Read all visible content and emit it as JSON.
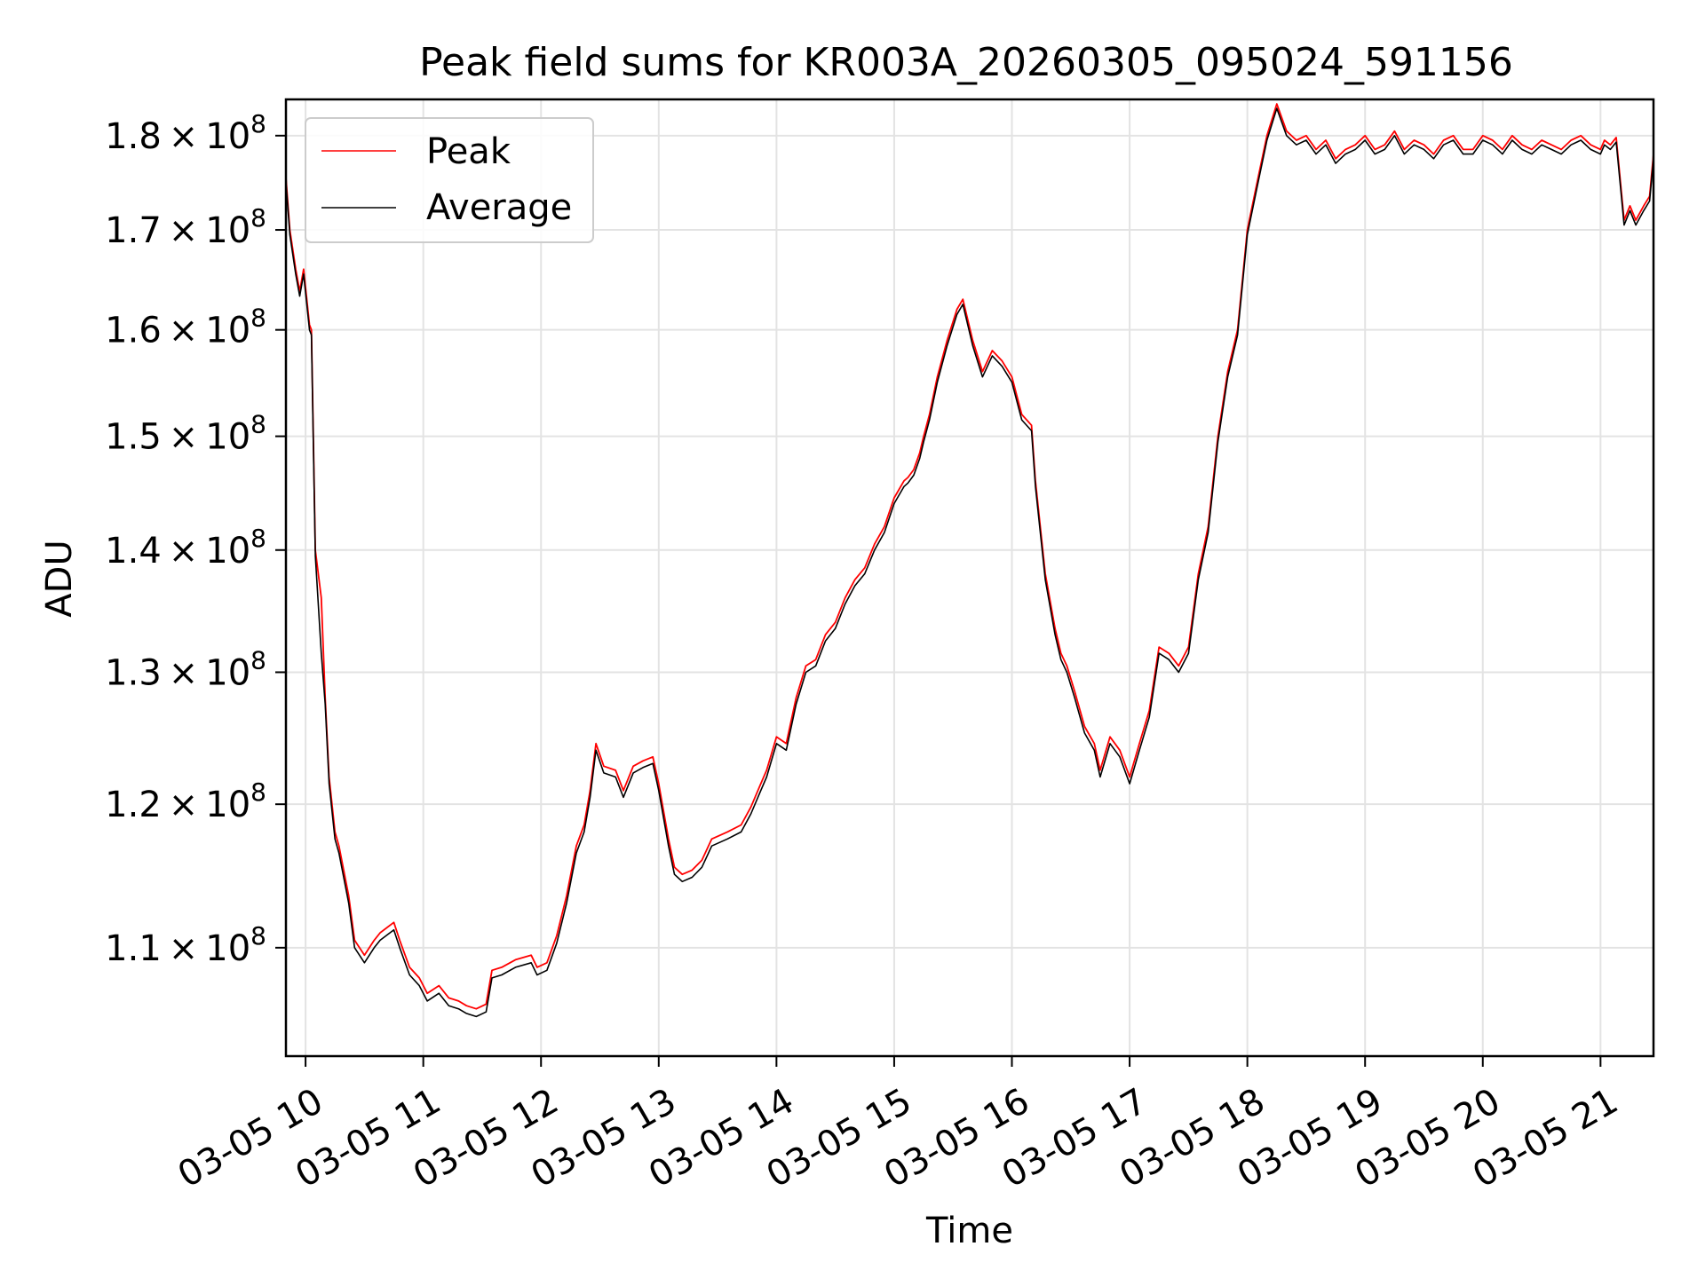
{
  "chart_data": {
    "type": "line",
    "title": "Peak field sums for KR003A_20260305_095024_591156",
    "xlabel": "Time",
    "ylabel": "ADU",
    "yscale": "log",
    "xlim": [
      "2026-03-05 09:50",
      "2026-03-05 21:27"
    ],
    "ylim": [
      103000000,
      184000000
    ],
    "grid": true,
    "legend_position": "upper left",
    "x_ticks": [
      {
        "value": "2026-03-05 10:00",
        "label": "03-05 10"
      },
      {
        "value": "2026-03-05 11:00",
        "label": "03-05 11"
      },
      {
        "value": "2026-03-05 12:00",
        "label": "03-05 12"
      },
      {
        "value": "2026-03-05 13:00",
        "label": "03-05 13"
      },
      {
        "value": "2026-03-05 14:00",
        "label": "03-05 14"
      },
      {
        "value": "2026-03-05 15:00",
        "label": "03-05 15"
      },
      {
        "value": "2026-03-05 16:00",
        "label": "03-05 16"
      },
      {
        "value": "2026-03-05 17:00",
        "label": "03-05 17"
      },
      {
        "value": "2026-03-05 18:00",
        "label": "03-05 18"
      },
      {
        "value": "2026-03-05 19:00",
        "label": "03-05 19"
      },
      {
        "value": "2026-03-05 20:00",
        "label": "03-05 20"
      },
      {
        "value": "2026-03-05 21:00",
        "label": "03-05 21"
      }
    ],
    "y_ticks": [
      {
        "value": 110000000,
        "mantissa": "1.1",
        "exp": "8"
      },
      {
        "value": 120000000,
        "mantissa": "1.2",
        "exp": "8"
      },
      {
        "value": 130000000,
        "mantissa": "1.3",
        "exp": "8"
      },
      {
        "value": 140000000,
        "mantissa": "1.4",
        "exp": "8"
      },
      {
        "value": 150000000,
        "mantissa": "1.5",
        "exp": "8"
      },
      {
        "value": 160000000,
        "mantissa": "1.6",
        "exp": "8"
      },
      {
        "value": 170000000,
        "mantissa": "1.7",
        "exp": "8"
      },
      {
        "value": 180000000,
        "mantissa": "1.8",
        "exp": "8"
      }
    ],
    "series": [
      {
        "name": "Peak",
        "color": "#ff0000"
      },
      {
        "name": "Average",
        "color": "#000000"
      }
    ],
    "x": [
      "2026-03-05 09:50",
      "2026-03-05 09:52",
      "2026-03-05 09:55",
      "2026-03-05 09:57",
      "2026-03-05 09:59",
      "2026-03-05 10:02",
      "2026-03-05 10:03",
      "2026-03-05 10:05",
      "2026-03-05 10:08",
      "2026-03-05 10:10",
      "2026-03-05 10:12",
      "2026-03-05 10:15",
      "2026-03-05 10:17",
      "2026-03-05 10:22",
      "2026-03-05 10:25",
      "2026-03-05 10:30",
      "2026-03-05 10:35",
      "2026-03-05 10:38",
      "2026-03-05 10:45",
      "2026-03-05 10:48",
      "2026-03-05 10:53",
      "2026-03-05 10:58",
      "2026-03-05 11:02",
      "2026-03-05 11:08",
      "2026-03-05 11:13",
      "2026-03-05 11:18",
      "2026-03-05 11:22",
      "2026-03-05 11:27",
      "2026-03-05 11:32",
      "2026-03-05 11:35",
      "2026-03-05 11:40",
      "2026-03-05 11:47",
      "2026-03-05 11:55",
      "2026-03-05 11:58",
      "2026-03-05 12:03",
      "2026-03-05 12:08",
      "2026-03-05 12:13",
      "2026-03-05 12:18",
      "2026-03-05 12:22",
      "2026-03-05 12:25",
      "2026-03-05 12:28",
      "2026-03-05 12:32",
      "2026-03-05 12:38",
      "2026-03-05 12:42",
      "2026-03-05 12:47",
      "2026-03-05 12:52",
      "2026-03-05 12:57",
      "2026-03-05 13:00",
      "2026-03-05 13:05",
      "2026-03-05 13:08",
      "2026-03-05 13:12",
      "2026-03-05 13:17",
      "2026-03-05 13:22",
      "2026-03-05 13:27",
      "2026-03-05 13:35",
      "2026-03-05 13:42",
      "2026-03-05 13:47",
      "2026-03-05 13:52",
      "2026-03-05 13:55",
      "2026-03-05 14:00",
      "2026-03-05 14:05",
      "2026-03-05 14:10",
      "2026-03-05 14:15",
      "2026-03-05 14:20",
      "2026-03-05 14:25",
      "2026-03-05 14:30",
      "2026-03-05 14:35",
      "2026-03-05 14:40",
      "2026-03-05 14:45",
      "2026-03-05 14:50",
      "2026-03-05 14:55",
      "2026-03-05 15:00",
      "2026-03-05 15:05",
      "2026-03-05 15:07",
      "2026-03-05 15:10",
      "2026-03-05 15:13",
      "2026-03-05 15:15",
      "2026-03-05 15:18",
      "2026-03-05 15:22",
      "2026-03-05 15:27",
      "2026-03-05 15:32",
      "2026-03-05 15:35",
      "2026-03-05 15:40",
      "2026-03-05 15:45",
      "2026-03-05 15:50",
      "2026-03-05 15:55",
      "2026-03-05 16:00",
      "2026-03-05 16:05",
      "2026-03-05 16:10",
      "2026-03-05 16:12",
      "2026-03-05 16:17",
      "2026-03-05 16:22",
      "2026-03-05 16:25",
      "2026-03-05 16:28",
      "2026-03-05 16:32",
      "2026-03-05 16:37",
      "2026-03-05 16:42",
      "2026-03-05 16:45",
      "2026-03-05 16:50",
      "2026-03-05 16:55",
      "2026-03-05 17:00",
      "2026-03-05 17:05",
      "2026-03-05 17:10",
      "2026-03-05 17:15",
      "2026-03-05 17:20",
      "2026-03-05 17:25",
      "2026-03-05 17:30",
      "2026-03-05 17:35",
      "2026-03-05 17:40",
      "2026-03-05 17:45",
      "2026-03-05 17:50",
      "2026-03-05 17:55",
      "2026-03-05 18:00",
      "2026-03-05 18:05",
      "2026-03-05 18:10",
      "2026-03-05 18:15",
      "2026-03-05 18:20",
      "2026-03-05 18:25",
      "2026-03-05 18:30",
      "2026-03-05 18:35",
      "2026-03-05 18:40",
      "2026-03-05 18:45",
      "2026-03-05 18:50",
      "2026-03-05 18:55",
      "2026-03-05 19:00",
      "2026-03-05 19:05",
      "2026-03-05 19:10",
      "2026-03-05 19:15",
      "2026-03-05 19:20",
      "2026-03-05 19:25",
      "2026-03-05 19:30",
      "2026-03-05 19:35",
      "2026-03-05 19:40",
      "2026-03-05 19:45",
      "2026-03-05 19:50",
      "2026-03-05 19:55",
      "2026-03-05 20:00",
      "2026-03-05 20:05",
      "2026-03-05 20:10",
      "2026-03-05 20:15",
      "2026-03-05 20:20",
      "2026-03-05 20:25",
      "2026-03-05 20:30",
      "2026-03-05 20:35",
      "2026-03-05 20:40",
      "2026-03-05 20:45",
      "2026-03-05 20:50",
      "2026-03-05 20:55",
      "2026-03-05 21:00",
      "2026-03-05 21:02",
      "2026-03-05 21:05",
      "2026-03-05 21:08",
      "2026-03-05 21:12",
      "2026-03-05 21:15",
      "2026-03-05 21:18",
      "2026-03-05 21:22",
      "2026-03-05 21:25",
      "2026-03-05 21:27"
    ],
    "peak": [
      175.5,
      170,
      166,
      163.8,
      166,
      160.5,
      160,
      140,
      136,
      128,
      122,
      118,
      117,
      113.5,
      110.5,
      109.5,
      110.5,
      111,
      111.7,
      110.5,
      108.7,
      108,
      107,
      107.5,
      106.7,
      106.5,
      106.2,
      106,
      106.3,
      108.5,
      108.7,
      109.2,
      109.5,
      108.7,
      109,
      110.8,
      113.5,
      117,
      118.5,
      121,
      124.5,
      122.8,
      122.5,
      121,
      122.8,
      123.2,
      123.5,
      121.5,
      117.5,
      115.5,
      115,
      115.3,
      116,
      117.5,
      118,
      118.5,
      119.8,
      121.5,
      122.5,
      125,
      124.5,
      128,
      130.5,
      131,
      133,
      134,
      136,
      137.5,
      138.5,
      140.5,
      142,
      144.5,
      146,
      146.3,
      147,
      148.5,
      150,
      152,
      155.5,
      159,
      162,
      163,
      159,
      156,
      158,
      157,
      155.5,
      152,
      151,
      146,
      138,
      133.5,
      131.5,
      130.5,
      128.5,
      125.8,
      124.5,
      122.5,
      125,
      124,
      122,
      124.5,
      127,
      132,
      131.5,
      130.5,
      132,
      138,
      142,
      150,
      156,
      160,
      170,
      175,
      180,
      183.5,
      180.5,
      179.5,
      180,
      178.5,
      179.5,
      177.5,
      178.5,
      179,
      180,
      178.5,
      179,
      180.5,
      178.5,
      179.5,
      179,
      178,
      179.5,
      180,
      178.5,
      178.5,
      180,
      179.5,
      178.5,
      180,
      179,
      178.5,
      179.5,
      179,
      178.5,
      179.5,
      180,
      179,
      178.5,
      179.5,
      179,
      179.8,
      171,
      172.5,
      171,
      172.5,
      173.5,
      178
    ],
    "average": [
      175,
      169.5,
      165.5,
      163.3,
      165.5,
      160,
      159.5,
      139.5,
      131.5,
      127.5,
      121.5,
      117.5,
      116.5,
      113,
      110,
      109,
      110,
      110.5,
      111.2,
      110,
      108.2,
      107.5,
      106.5,
      107,
      106.2,
      106,
      105.7,
      105.5,
      105.8,
      108,
      108.2,
      108.7,
      109,
      108.2,
      108.5,
      110.3,
      113,
      116.5,
      118,
      120.5,
      124,
      122.3,
      122,
      120.5,
      122.3,
      122.7,
      123,
      121,
      117,
      115,
      114.5,
      114.8,
      115.5,
      117,
      117.5,
      118,
      119.3,
      121,
      122,
      124.5,
      124,
      127.5,
      130,
      130.5,
      132.5,
      133.5,
      135.5,
      137,
      138,
      140,
      141.5,
      144,
      145.5,
      145.8,
      146.5,
      148,
      149.5,
      151.5,
      155,
      158.5,
      161.5,
      162.5,
      158.5,
      155.5,
      157.5,
      156.5,
      155,
      151.5,
      150.5,
      145.5,
      137.5,
      133,
      131,
      130,
      128,
      125.3,
      124,
      122,
      124.5,
      123.5,
      121.5,
      124,
      126.5,
      131.5,
      131,
      130,
      131.5,
      137.5,
      141.5,
      149.5,
      155.5,
      159.5,
      169.5,
      174.5,
      179.5,
      183,
      180,
      179,
      179.5,
      178,
      179,
      177,
      178,
      178.5,
      179.5,
      178,
      178.5,
      180,
      178,
      179,
      178.5,
      177.5,
      179,
      179.5,
      178,
      178,
      179.5,
      179,
      178,
      179.5,
      178.5,
      178,
      179,
      178.5,
      178,
      179,
      179.5,
      178.5,
      178,
      179,
      178.5,
      179.3,
      170.5,
      172,
      170.5,
      172,
      173,
      177.5
    ],
    "value_unit": "1e6 ADU"
  }
}
